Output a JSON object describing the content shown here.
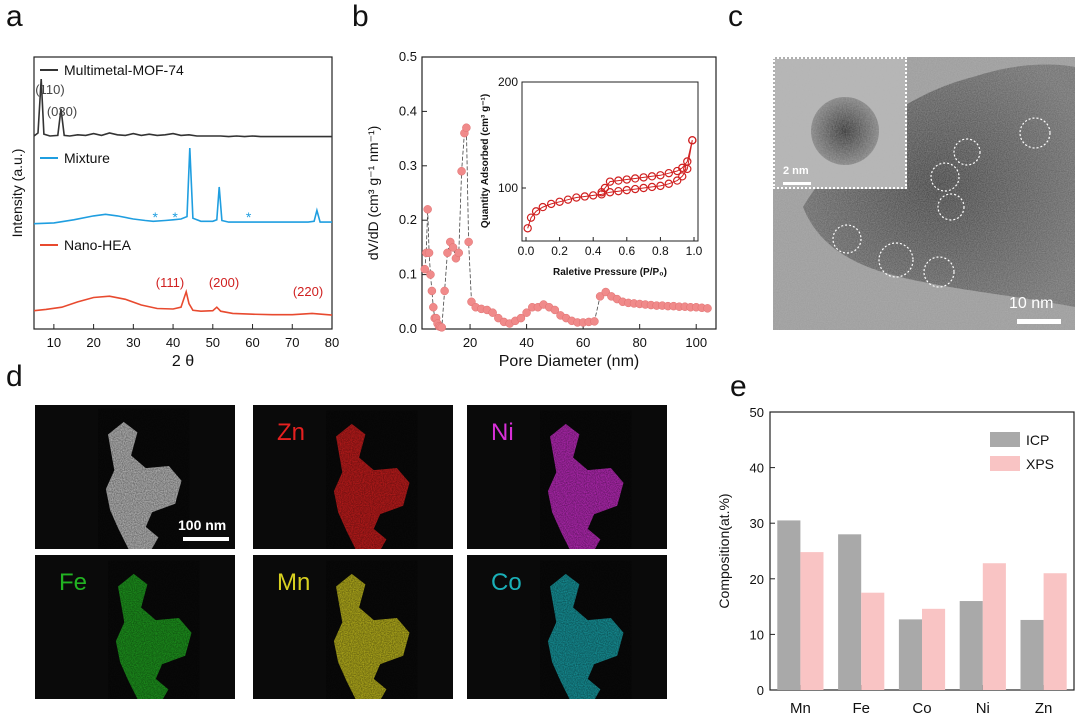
{
  "panels": {
    "a": "a",
    "b": "b",
    "c": "c",
    "d": "d",
    "e": "e"
  },
  "chart_data": [
    {
      "id": "a",
      "type": "line",
      "xlabel": "2 θ",
      "ylabel": "Intensity (a.u.)",
      "xlim": [
        5,
        80
      ],
      "xticks": [
        10,
        20,
        30,
        40,
        50,
        60,
        70,
        80
      ],
      "series": [
        {
          "name": "Multimetal-MOF-74",
          "color": "#333333",
          "x": [
            5,
            6,
            6.8,
            7.5,
            9,
            11,
            11.8,
            12.6,
            14,
            16,
            18,
            20,
            22,
            24,
            26,
            28,
            30,
            32,
            34,
            36,
            38,
            40,
            42,
            44,
            46,
            48,
            50,
            52,
            54,
            56,
            58,
            60,
            62,
            64,
            66,
            68,
            70,
            72,
            74,
            76,
            78,
            80
          ],
          "y": [
            0.05,
            0.1,
            1.0,
            0.08,
            0.05,
            0.06,
            0.5,
            0.06,
            0.05,
            0.07,
            0.06,
            0.09,
            0.06,
            0.1,
            0.07,
            0.06,
            0.09,
            0.06,
            0.08,
            0.06,
            0.07,
            0.09,
            0.06,
            0.07,
            0.05,
            0.05,
            0.05,
            0.05,
            0.04,
            0.05,
            0.04,
            0.05,
            0.04,
            0.04,
            0.04,
            0.04,
            0.04,
            0.04,
            0.04,
            0.04,
            0.04,
            0.04
          ]
        },
        {
          "name": "Mixture",
          "color": "#1f9ee0",
          "x": [
            5,
            10,
            15,
            20,
            23,
            26,
            30,
            33,
            35,
            38,
            40,
            42,
            43.5,
            44.2,
            45,
            47,
            50,
            51,
            51.6,
            52.3,
            54,
            58,
            62,
            66,
            70,
            74,
            75.5,
            76.2,
            77,
            80
          ],
          "y": [
            0.03,
            0.04,
            0.08,
            0.13,
            0.15,
            0.13,
            0.09,
            0.07,
            0.06,
            0.07,
            0.08,
            0.09,
            0.12,
            1.0,
            0.1,
            0.06,
            0.06,
            0.08,
            0.5,
            0.07,
            0.05,
            0.05,
            0.05,
            0.05,
            0.05,
            0.05,
            0.06,
            0.2,
            0.05,
            0.05
          ]
        },
        {
          "name": "Nano-HEA",
          "color": "#e84a2f",
          "x": [
            5,
            8,
            12,
            16,
            20,
            24,
            28,
            32,
            36,
            40,
            42,
            43.3,
            44,
            45,
            47,
            50,
            51,
            52,
            55,
            60,
            65,
            70,
            75,
            80
          ],
          "y": [
            0.12,
            0.15,
            0.2,
            0.32,
            0.42,
            0.45,
            0.38,
            0.25,
            0.17,
            0.16,
            0.2,
            0.55,
            0.28,
            0.13,
            0.11,
            0.12,
            0.2,
            0.11,
            0.06,
            0.04,
            0.03,
            0.03,
            0.06,
            0.02
          ]
        }
      ],
      "annotations": [
        {
          "text": "(110)",
          "x": 6.8,
          "series": "Multimetal-MOF-74"
        },
        {
          "text": "(030)",
          "x": 11.8,
          "series": "Multimetal-MOF-74"
        },
        {
          "text": "(111)",
          "x": 43.3,
          "series": "Nano-HEA"
        },
        {
          "text": "(200)",
          "x": 51,
          "series": "Nano-HEA"
        },
        {
          "text": "(220)",
          "x": 75,
          "series": "Nano-HEA"
        }
      ],
      "markers": [
        {
          "text": "*",
          "x": 35.5
        },
        {
          "text": "*",
          "x": 40.5
        },
        {
          "text": "*",
          "x": 59
        }
      ]
    },
    {
      "id": "b",
      "type": "scatter",
      "xlabel": "Pore Diameter (nm)",
      "ylabel": "dV/dD  (cm³ g⁻¹ nm⁻¹)",
      "xlim": [
        3,
        107
      ],
      "ylim": [
        0,
        0.5
      ],
      "xticks": [
        20,
        40,
        60,
        80,
        100
      ],
      "yticks": [
        0.0,
        0.1,
        0.2,
        0.3,
        0.4,
        0.5
      ],
      "marker_color": "#f08a8a",
      "x": [
        4,
        4.5,
        5,
        5.5,
        6,
        6.5,
        7,
        7.5,
        8,
        8.5,
        9,
        9.5,
        10,
        11,
        12,
        13,
        14,
        15,
        16,
        17,
        18,
        18.7,
        19.5,
        20.5,
        22,
        24,
        26,
        28,
        30,
        32,
        34,
        36,
        38,
        40,
        42,
        44,
        46,
        48,
        50,
        52,
        54,
        56,
        58,
        60,
        62,
        64,
        66,
        68,
        70,
        72,
        74,
        76,
        78,
        80,
        82,
        84,
        86,
        88,
        90,
        92,
        94,
        96,
        98,
        100,
        102,
        104
      ],
      "y": [
        0.11,
        0.14,
        0.22,
        0.14,
        0.1,
        0.07,
        0.04,
        0.02,
        0.02,
        0.01,
        0.005,
        0.004,
        0.003,
        0.07,
        0.14,
        0.16,
        0.15,
        0.13,
        0.14,
        0.29,
        0.36,
        0.37,
        0.16,
        0.05,
        0.04,
        0.037,
        0.035,
        0.03,
        0.02,
        0.013,
        0.01,
        0.015,
        0.02,
        0.03,
        0.04,
        0.04,
        0.045,
        0.04,
        0.035,
        0.025,
        0.02,
        0.015,
        0.012,
        0.012,
        0.013,
        0.014,
        0.06,
        0.068,
        0.06,
        0.055,
        0.05,
        0.048,
        0.047,
        0.046,
        0.045,
        0.044,
        0.043,
        0.043,
        0.042,
        0.042,
        0.041,
        0.041,
        0.04,
        0.04,
        0.039,
        0.038
      ],
      "inset": {
        "xlabel": "Raletive Pressure (P/P₀)",
        "ylabel": "Quantity Adsorbed (cm³ g⁻¹)",
        "xlim": [
          0,
          1.0
        ],
        "ylim": [
          50,
          200
        ],
        "xticks": [
          0.0,
          0.2,
          0.4,
          0.6,
          0.8,
          1.0
        ],
        "yticks": [
          100,
          200
        ],
        "adsorption": {
          "x": [
            0.01,
            0.03,
            0.06,
            0.1,
            0.15,
            0.2,
            0.25,
            0.3,
            0.35,
            0.4,
            0.45,
            0.5,
            0.55,
            0.6,
            0.65,
            0.7,
            0.75,
            0.8,
            0.85,
            0.9,
            0.93,
            0.96,
            0.99
          ],
          "y": [
            62,
            72,
            78,
            82,
            85,
            87,
            89,
            91,
            92,
            93,
            94,
            96,
            97,
            98,
            99,
            100,
            101,
            102,
            104,
            107,
            111,
            118,
            145
          ]
        },
        "desorption": {
          "x": [
            0.99,
            0.96,
            0.93,
            0.9,
            0.85,
            0.8,
            0.75,
            0.7,
            0.65,
            0.6,
            0.55,
            0.5,
            0.47,
            0.45
          ],
          "y": [
            145,
            125,
            119,
            116,
            114,
            112,
            111,
            110,
            109,
            108,
            107,
            106,
            100,
            96
          ]
        }
      }
    },
    {
      "id": "e",
      "type": "bar",
      "ylabel": "Composition(at.%)",
      "ylim": [
        0,
        50
      ],
      "yticks": [
        0,
        10,
        20,
        30,
        40,
        50
      ],
      "categories": [
        "Mn",
        "Fe",
        "Co",
        "Ni",
        "Zn"
      ],
      "series": [
        {
          "name": "ICP",
          "color": "#a9a9a9",
          "values": [
            30.5,
            28,
            12.7,
            16,
            12.6
          ]
        },
        {
          "name": "XPS",
          "color": "#f9c4c4",
          "values": [
            24.8,
            17.5,
            14.6,
            22.8,
            21
          ]
        }
      ]
    }
  ],
  "tem": {
    "scale_main": "10 nm",
    "scale_inset": "2 nm"
  },
  "eds": {
    "scale": "100 nm",
    "maps": [
      {
        "label": "",
        "color": "#dddddd"
      },
      {
        "label": "Zn",
        "color": "#e52020"
      },
      {
        "label": "Ni",
        "color": "#d830d8"
      },
      {
        "label": "Fe",
        "color": "#22b322"
      },
      {
        "label": "Mn",
        "color": "#d8d020"
      },
      {
        "label": "Co",
        "color": "#1ab0b8"
      }
    ]
  }
}
